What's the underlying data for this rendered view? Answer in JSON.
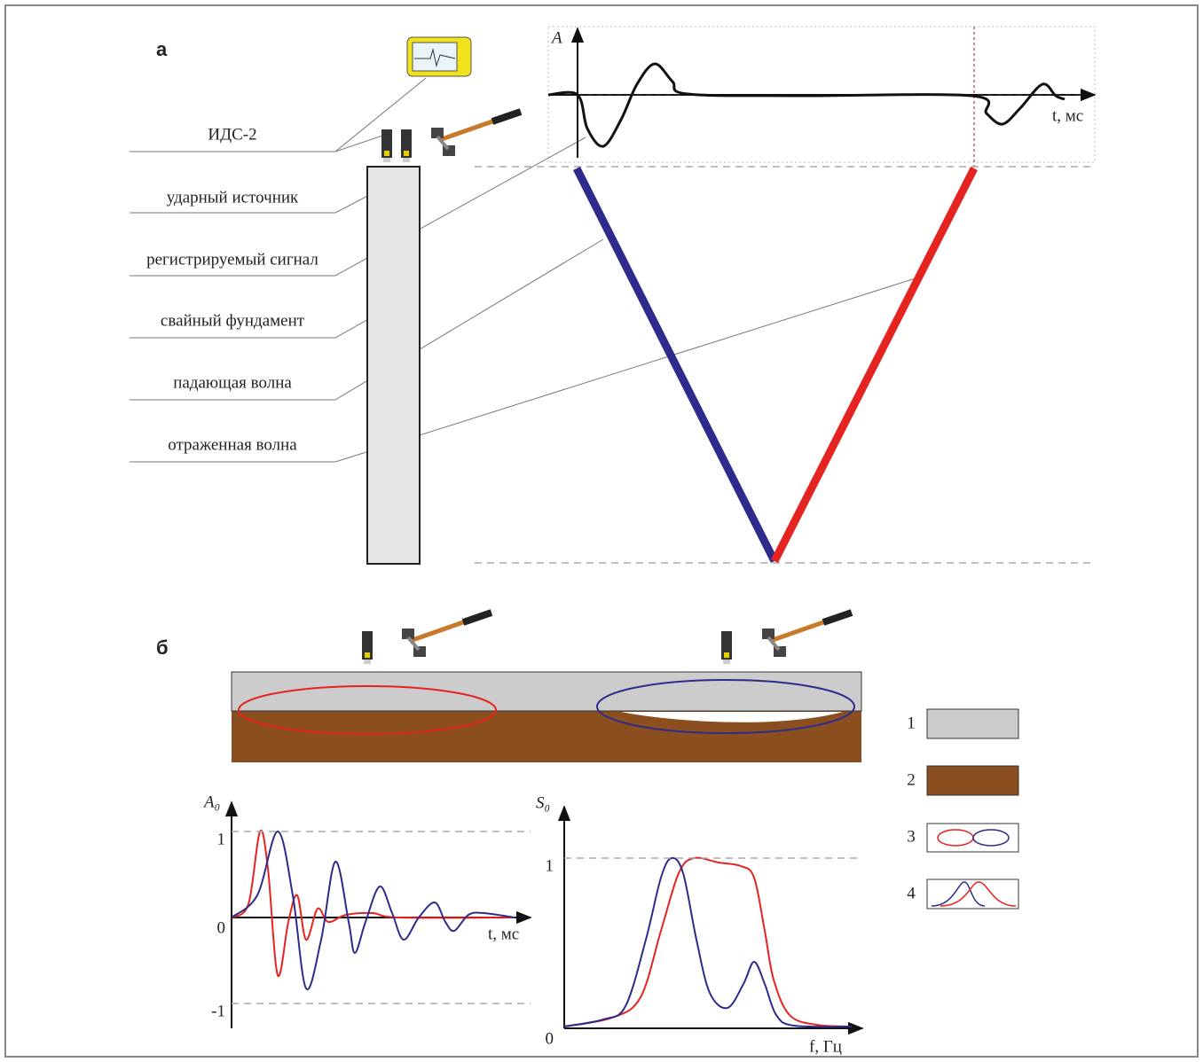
{
  "panel_a": {
    "label": "а",
    "callouts": [
      "ИДС-2",
      "ударный источник",
      "регистрируемый сигнал",
      "свайный фундамент",
      "падающая волна",
      "отраженная волна"
    ],
    "signal_chart": {
      "y_label": "A",
      "x_label": "t, мс"
    }
  },
  "panel_b": {
    "label": "б",
    "legend": [
      "1",
      "2",
      "3",
      "4"
    ],
    "signal_chart": {
      "y_label": "A₀",
      "x_label": "t, мс",
      "yticks": [
        1,
        0,
        -1
      ]
    },
    "spectrum_chart": {
      "y_label": "S₀",
      "x_label": "f, Гц",
      "yticks": [
        1,
        0
      ]
    }
  }
}
